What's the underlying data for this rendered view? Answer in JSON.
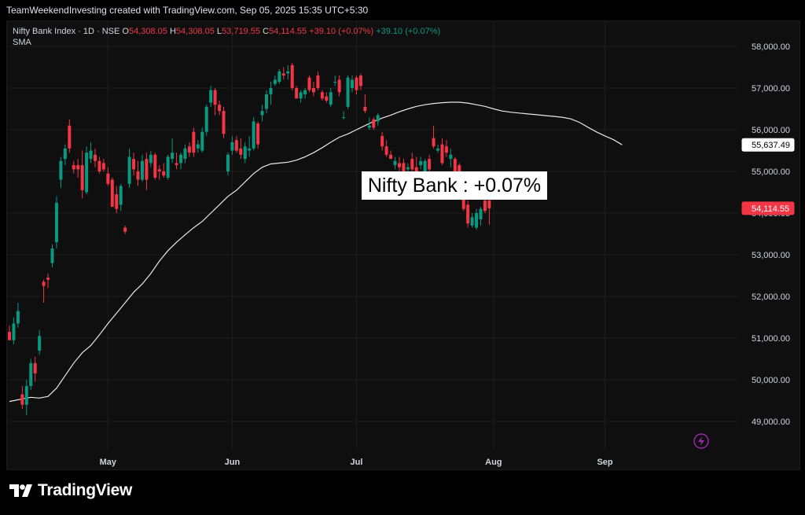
{
  "header": {
    "attribution": "TeamWeekendInvesting created with TradingView.com, Sep 05, 2025 15:35 UTC+5:30"
  },
  "legend": {
    "symbol": "Nifty Bank Index · 1D · NSE",
    "open_label": "O",
    "open": "54,308.05",
    "high_label": "H",
    "high": "54,308.05",
    "low_label": "L",
    "low": "53,719.55",
    "close_label": "C",
    "close": "54,114.55",
    "change": "+39.10 (+0.07%)",
    "change_dup": "+39.10 (+0.07%)",
    "indicator": "SMA"
  },
  "annotation": "Nifty Bank : +0.07%",
  "price_badges": {
    "sma": "55,637.49",
    "last": "54,114.55"
  },
  "footer": {
    "logo_text": "TradingView"
  },
  "colors": {
    "up": "#089981",
    "down": "#f23645",
    "sma": "#e8e8e8",
    "background": "#0f0f0f"
  },
  "chart_data": {
    "type": "candlestick",
    "title": "Nifty Bank Index · 1D · NSE",
    "y_ticks": [
      49000,
      50000,
      51000,
      52000,
      53000,
      54000,
      55000,
      56000,
      57000,
      58000
    ],
    "y_tick_labels": [
      "49,000.00",
      "50,000.00",
      "51,000.00",
      "52,000.00",
      "53,000.00",
      "54,000.00",
      "55,000.00",
      "56,000.00",
      "57,000.00",
      "58,000.00"
    ],
    "ylim": [
      48500,
      58300
    ],
    "x_ticks": [
      {
        "label": "May",
        "index": 23
      },
      {
        "label": "Jun",
        "index": 52
      },
      {
        "label": "Jul",
        "index": 81
      },
      {
        "label": "Aug",
        "index": 113
      },
      {
        "label": "Sep",
        "index": 139
      }
    ],
    "candles": [
      [
        51150,
        51300,
        50950,
        50950
      ],
      [
        50950,
        51500,
        50850,
        51350
      ],
      [
        51350,
        51850,
        51250,
        51650
      ],
      [
        49650,
        49850,
        49300,
        49400
      ],
      [
        49400,
        50000,
        49150,
        49850
      ],
      [
        49850,
        50500,
        49750,
        50400
      ],
      [
        50400,
        50550,
        49950,
        50150
      ],
      [
        50700,
        51200,
        50600,
        51050
      ],
      [
        52350,
        52400,
        51850,
        52250
      ],
      [
        52450,
        52550,
        52200,
        52400
      ],
      [
        52800,
        53250,
        52700,
        53150
      ],
      [
        53300,
        54400,
        53150,
        54250
      ],
      [
        54800,
        55350,
        54600,
        55250
      ],
      [
        55300,
        55650,
        55150,
        55550
      ],
      [
        56100,
        56250,
        55450,
        55550
      ],
      [
        55150,
        55250,
        54950,
        55050
      ],
      [
        55150,
        55300,
        54850,
        55050
      ],
      [
        55150,
        55500,
        54350,
        54550
      ],
      [
        54500,
        55600,
        54450,
        55450
      ],
      [
        55300,
        55700,
        55200,
        55500
      ],
      [
        55400,
        55550,
        55100,
        55250
      ],
      [
        55250,
        55350,
        54950,
        55000
      ],
      [
        55200,
        55300,
        55000,
        55050
      ],
      [
        54950,
        55100,
        54650,
        54700
      ],
      [
        54800,
        54850,
        54150,
        54150
      ],
      [
        54450,
        54650,
        54000,
        54100
      ],
      [
        54200,
        54700,
        54050,
        54650
      ],
      [
        53650,
        53700,
        53500,
        53550
      ],
      [
        54700,
        55550,
        54600,
        55350
      ],
      [
        55300,
        55450,
        54900,
        55050
      ],
      [
        55000,
        55250,
        54650,
        54800
      ],
      [
        54800,
        55400,
        54750,
        55250
      ],
      [
        55300,
        55450,
        54550,
        54800
      ],
      [
        55200,
        55500,
        55100,
        55400
      ],
      [
        55400,
        55450,
        54800,
        54850
      ],
      [
        55050,
        55150,
        54800,
        55000
      ],
      [
        55000,
        55200,
        54850,
        54900
      ],
      [
        54850,
        55400,
        54800,
        55350
      ],
      [
        55300,
        55800,
        55200,
        55450
      ],
      [
        55200,
        55450,
        55050,
        55150
      ],
      [
        55200,
        55450,
        55050,
        55400
      ],
      [
        55300,
        55650,
        55200,
        55550
      ],
      [
        55600,
        55700,
        55350,
        55450
      ],
      [
        55950,
        56050,
        55350,
        55450
      ],
      [
        55550,
        55750,
        55450,
        55650
      ],
      [
        55500,
        56050,
        55450,
        55950
      ],
      [
        55950,
        56600,
        55850,
        56550
      ],
      [
        56650,
        57050,
        56550,
        56950
      ],
      [
        56950,
        57000,
        56350,
        56600
      ],
      [
        56600,
        56700,
        56350,
        56450
      ],
      [
        56450,
        56550,
        55800,
        55900
      ],
      [
        55000,
        55450,
        54900,
        55400
      ],
      [
        55500,
        55850,
        55400,
        55700
      ],
      [
        55750,
        55850,
        55450,
        55500
      ],
      [
        55550,
        55800,
        55300,
        55400
      ],
      [
        55300,
        55700,
        55200,
        55600
      ],
      [
        55500,
        55850,
        55350,
        55550
      ],
      [
        55550,
        56300,
        55500,
        56200
      ],
      [
        56150,
        56200,
        55550,
        55650
      ],
      [
        56350,
        56600,
        56200,
        56450
      ],
      [
        56500,
        56950,
        56400,
        56850
      ],
      [
        56850,
        57150,
        56600,
        57000
      ],
      [
        57100,
        57300,
        57050,
        57200
      ],
      [
        57150,
        57450,
        57100,
        57400
      ],
      [
        57350,
        57500,
        57200,
        57300
      ],
      [
        57350,
        57550,
        57200,
        57400
      ],
      [
        57550,
        57600,
        56950,
        57000
      ],
      [
        57000,
        57050,
        56750,
        56750
      ],
      [
        56750,
        56950,
        56650,
        56900
      ],
      [
        56850,
        57000,
        56750,
        56950
      ],
      [
        57250,
        57300,
        56900,
        56950
      ],
      [
        57000,
        57150,
        56800,
        56900
      ],
      [
        57300,
        57400,
        56950,
        57000
      ],
      [
        56900,
        56950,
        56700,
        56750
      ],
      [
        56800,
        56900,
        56650,
        56700
      ],
      [
        56600,
        57000,
        56550,
        56900
      ],
      [
        57150,
        57300,
        57050,
        57150
      ],
      [
        57200,
        57300,
        56800,
        56900
      ],
      [
        56300,
        56450,
        56250,
        56300
      ],
      [
        56550,
        57300,
        56500,
        57250
      ],
      [
        57000,
        57300,
        56900,
        57200
      ],
      [
        57250,
        57300,
        56850,
        56950
      ],
      [
        57300,
        57350,
        56950,
        57050
      ],
      [
        56550,
        56850,
        56400,
        56450
      ],
      [
        56050,
        56300,
        56000,
        56100
      ],
      [
        56250,
        56300,
        56000,
        56050
      ],
      [
        56200,
        56400,
        56100,
        56350
      ],
      [
        55850,
        55950,
        55500,
        55600
      ],
      [
        55600,
        55750,
        55350,
        55400
      ],
      [
        55400,
        55500,
        55300,
        55300
      ],
      [
        55150,
        55350,
        55050,
        55250
      ],
      [
        55200,
        55350,
        55000,
        55100
      ],
      [
        55200,
        55300,
        54950,
        55000
      ],
      [
        55050,
        55200,
        54950,
        55100
      ],
      [
        55300,
        55450,
        55000,
        55050
      ],
      [
        55100,
        55350,
        54900,
        55000
      ],
      [
        55150,
        55350,
        55050,
        55250
      ],
      [
        55000,
        55300,
        54950,
        55250
      ],
      [
        55300,
        55400,
        54950,
        55050
      ],
      [
        55800,
        56100,
        55550,
        55600
      ],
      [
        55500,
        55650,
        55450,
        55550
      ],
      [
        55650,
        55800,
        55150,
        55200
      ],
      [
        55600,
        55750,
        55350,
        55450
      ],
      [
        55300,
        55550,
        55100,
        55400
      ],
      [
        55300,
        55350,
        54950,
        55000
      ],
      [
        55150,
        55200,
        54550,
        54800
      ],
      [
        54800,
        54850,
        54050,
        54100
      ],
      [
        54200,
        54300,
        53650,
        53750
      ],
      [
        53700,
        54000,
        53650,
        53900
      ],
      [
        53650,
        54100,
        53600,
        54000
      ],
      [
        53850,
        54150,
        53700,
        54100
      ],
      [
        54300,
        54400,
        54000,
        54050
      ],
      [
        54308.05,
        54308.05,
        53719.55,
        54114.55
      ]
    ],
    "sma": [
      [
        0,
        49480
      ],
      [
        3,
        49540
      ],
      [
        5,
        49580
      ],
      [
        7,
        49560
      ],
      [
        9,
        49600
      ],
      [
        11,
        49800
      ],
      [
        13,
        50100
      ],
      [
        15,
        50400
      ],
      [
        17,
        50650
      ],
      [
        19,
        50820
      ],
      [
        21,
        51080
      ],
      [
        23,
        51350
      ],
      [
        25,
        51600
      ],
      [
        27,
        51850
      ],
      [
        29,
        52100
      ],
      [
        31,
        52300
      ],
      [
        33,
        52550
      ],
      [
        35,
        52850
      ],
      [
        37,
        53100
      ],
      [
        39,
        53300
      ],
      [
        41,
        53480
      ],
      [
        43,
        53650
      ],
      [
        45,
        53800
      ],
      [
        47,
        54000
      ],
      [
        49,
        54200
      ],
      [
        51,
        54400
      ],
      [
        53,
        54550
      ],
      [
        55,
        54750
      ],
      [
        57,
        54950
      ],
      [
        59,
        55100
      ],
      [
        61,
        55180
      ],
      [
        63,
        55200
      ],
      [
        65,
        55220
      ],
      [
        67,
        55270
      ],
      [
        69,
        55350
      ],
      [
        71,
        55450
      ],
      [
        73,
        55570
      ],
      [
        75,
        55700
      ],
      [
        77,
        55820
      ],
      [
        79,
        55900
      ],
      [
        81,
        56000
      ],
      [
        83,
        56100
      ],
      [
        85,
        56200
      ],
      [
        87,
        56280
      ],
      [
        89,
        56350
      ],
      [
        91,
        56430
      ],
      [
        93,
        56500
      ],
      [
        95,
        56560
      ],
      [
        97,
        56600
      ],
      [
        99,
        56630
      ],
      [
        101,
        56650
      ],
      [
        103,
        56660
      ],
      [
        105,
        56660
      ],
      [
        107,
        56640
      ],
      [
        109,
        56600
      ],
      [
        111,
        56560
      ],
      [
        113,
        56500
      ],
      [
        115,
        56450
      ],
      [
        117,
        56420
      ],
      [
        119,
        56400
      ],
      [
        121,
        56380
      ],
      [
        123,
        56360
      ],
      [
        125,
        56340
      ],
      [
        127,
        56320
      ],
      [
        129,
        56300
      ],
      [
        131,
        56260
      ],
      [
        133,
        56180
      ],
      [
        135,
        56060
      ],
      [
        137,
        55950
      ],
      [
        139,
        55850
      ],
      [
        141,
        55760
      ],
      [
        143,
        55637.49
      ]
    ]
  }
}
